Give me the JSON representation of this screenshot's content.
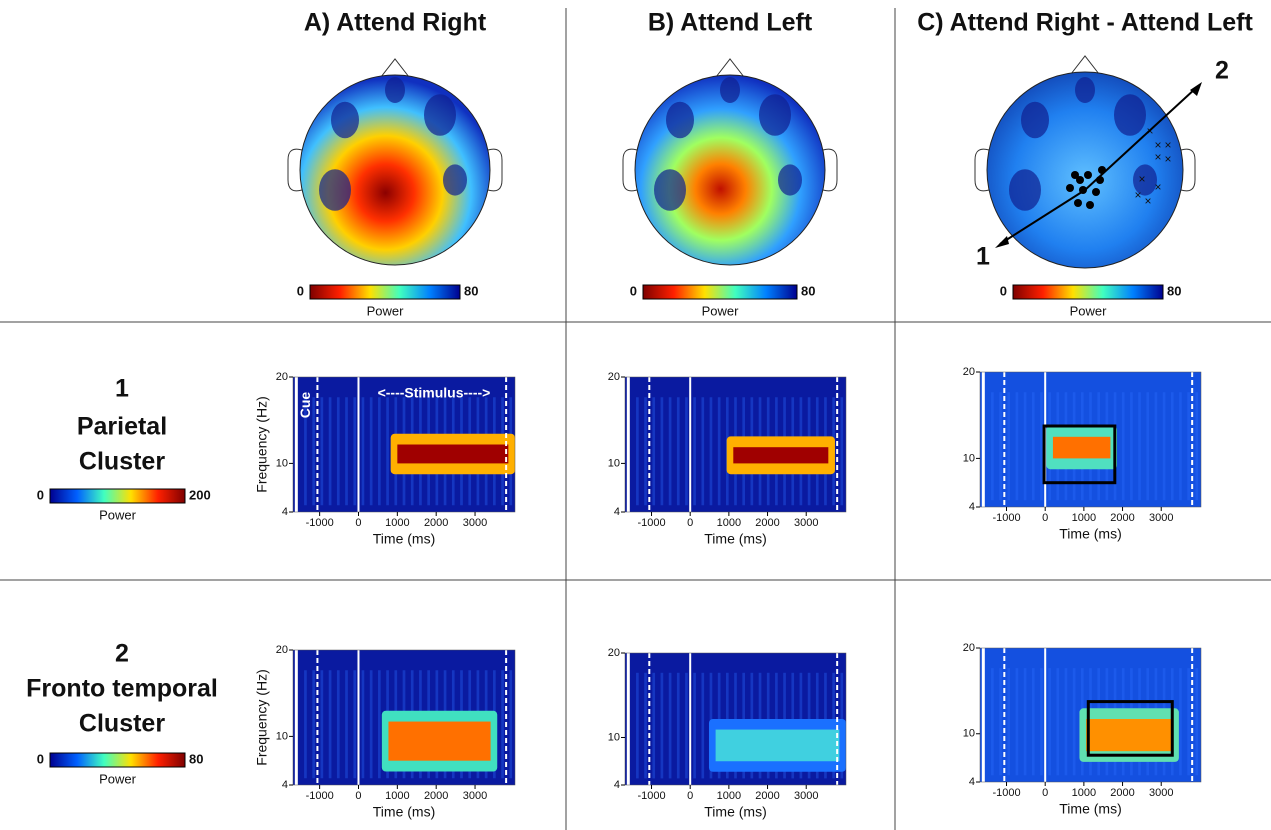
{
  "columns": [
    "A) Attend Right",
    "B) Attend Left",
    "C) Attend Right - Attend Left"
  ],
  "topomap_colorbar": {
    "min": "0",
    "max": "80",
    "label": "Power"
  },
  "topomap_arrows": [
    "1",
    "2"
  ],
  "rows": [
    {
      "number": "1",
      "label_lines": [
        "Parietal",
        "Cluster"
      ],
      "colorbar": {
        "min": "0",
        "max": "200",
        "label": "Power"
      }
    },
    {
      "number": "2",
      "label_lines": [
        "Fronto temporal",
        "Cluster"
      ],
      "colorbar": {
        "min": "0",
        "max": "80",
        "label": "Power"
      }
    }
  ],
  "axes": {
    "x_label": "Time (ms)",
    "y_label": "Frequency (Hz)",
    "xticks": [
      "-1000",
      "0",
      "1000",
      "2000",
      "3000"
    ],
    "yticks": [
      "20",
      "10",
      "4"
    ]
  },
  "annotations": {
    "cue": "Cue",
    "stimulus": "<----Stimulus---->"
  }
}
